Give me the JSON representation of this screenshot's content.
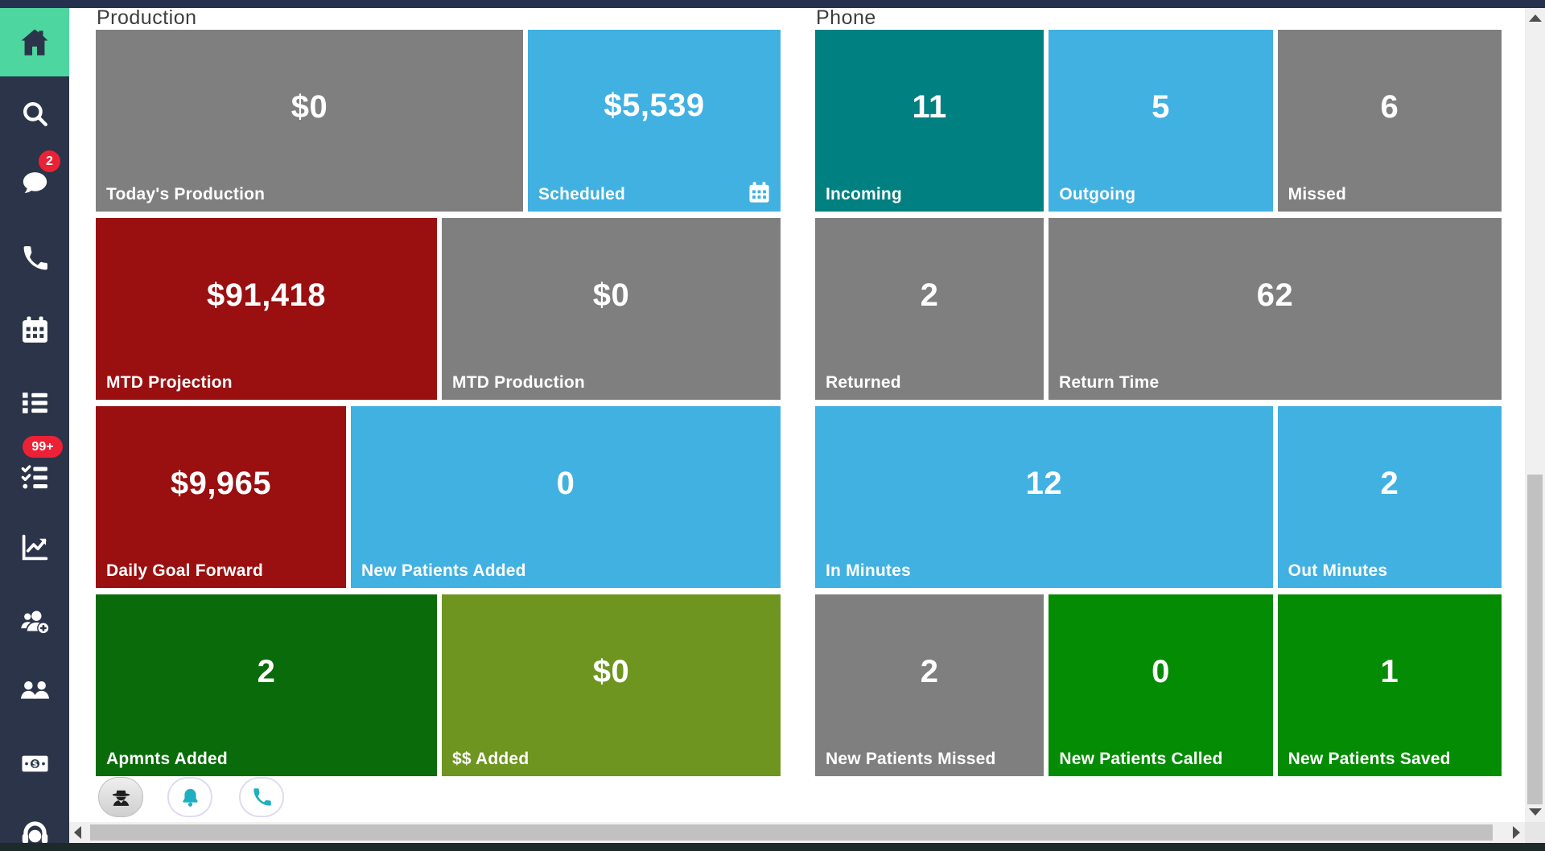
{
  "colors": {
    "gray": "#7f7f7f",
    "blue": "#41b1e2",
    "teal": "#008081",
    "darkred": "#9a0f10",
    "darkgreen": "#0a6b0a",
    "olive": "#6e9520",
    "green": "#058c05",
    "sidebar_bg": "#2b3449",
    "sidebar_active_bg": "#4dd6a0",
    "badge_red": "#ec2135",
    "topbar": "#263150",
    "footer_icon_teal": "#1db0c0"
  },
  "sidebar": {
    "items": [
      {
        "id": "home",
        "icon": "home-icon",
        "active": true
      },
      {
        "id": "search",
        "icon": "search-icon"
      },
      {
        "id": "messages",
        "icon": "chat-icon",
        "badge": "2",
        "badge_shape": "round"
      },
      {
        "id": "phone",
        "icon": "phone-icon"
      },
      {
        "id": "calendar",
        "icon": "calendar-icon"
      },
      {
        "id": "list",
        "icon": "list-icon"
      },
      {
        "id": "tasks",
        "icon": "checklist-icon",
        "badge": "99+",
        "badge_shape": "pill"
      },
      {
        "id": "analytics",
        "icon": "chart-icon"
      },
      {
        "id": "add-patient",
        "icon": "user-plus-icon"
      },
      {
        "id": "patients",
        "icon": "users-icon"
      },
      {
        "id": "payments",
        "icon": "money-icon"
      },
      {
        "id": "support",
        "icon": "headset-icon"
      }
    ]
  },
  "sections": [
    {
      "title": "Production",
      "rows": [
        {
          "tiles": [
            {
              "value": "$0",
              "label": "Today's Production",
              "color": "gray",
              "flex": 531
            },
            {
              "value": "$5,539",
              "label": "Scheduled",
              "color": "blue",
              "flex": 314,
              "icon": "calendar-icon"
            }
          ]
        },
        {
          "tiles": [
            {
              "value": "$91,418",
              "label": "MTD Projection",
              "color": "darkred",
              "flex": 423
            },
            {
              "value": "$0",
              "label": "MTD Production",
              "color": "gray",
              "flex": 420
            }
          ]
        },
        {
          "tiles": [
            {
              "value": "$9,965",
              "label": "Daily Goal Forward",
              "color": "darkred",
              "flex": 311
            },
            {
              "value": "0",
              "label": "New Patients Added",
              "color": "blue",
              "flex": 534
            }
          ]
        },
        {
          "tiles": [
            {
              "value": "2",
              "label": "Apmnts Added",
              "color": "darkgreen",
              "flex": 423
            },
            {
              "value": "$0",
              "label": "$$ Added",
              "color": "olive",
              "flex": 420
            }
          ]
        }
      ]
    },
    {
      "title": "Phone",
      "rows": [
        {
          "tiles": [
            {
              "value": "11",
              "label": "Incoming",
              "color": "teal",
              "flex": 284
            },
            {
              "value": "5",
              "label": "Outgoing",
              "color": "blue",
              "flex": 278
            },
            {
              "value": "6",
              "label": "Missed",
              "color": "gray",
              "flex": 278
            }
          ]
        },
        {
          "tiles": [
            {
              "value": "2",
              "label": "Returned",
              "color": "gray",
              "flex": 284
            },
            {
              "value": "62",
              "label": "Return Time",
              "color": "gray",
              "flex": 563
            }
          ]
        },
        {
          "tiles": [
            {
              "value": "12",
              "label": "In Minutes",
              "color": "blue",
              "flex": 568
            },
            {
              "value": "2",
              "label": "Out Minutes",
              "color": "blue",
              "flex": 278
            }
          ]
        },
        {
          "tiles": [
            {
              "value": "2",
              "label": "New Patients Missed",
              "color": "gray",
              "flex": 284
            },
            {
              "value": "0",
              "label": "New Patients Called",
              "color": "green",
              "flex": 278
            },
            {
              "value": "1",
              "label": "New Patients Saved",
              "color": "green",
              "flex": 278
            }
          ]
        }
      ]
    }
  ],
  "footer_buttons": [
    {
      "id": "agent",
      "icon": "spy-icon",
      "style": "gray"
    },
    {
      "id": "notifications",
      "icon": "bell-icon",
      "style": "light"
    },
    {
      "id": "calls",
      "icon": "phone-icon",
      "style": "light"
    }
  ]
}
